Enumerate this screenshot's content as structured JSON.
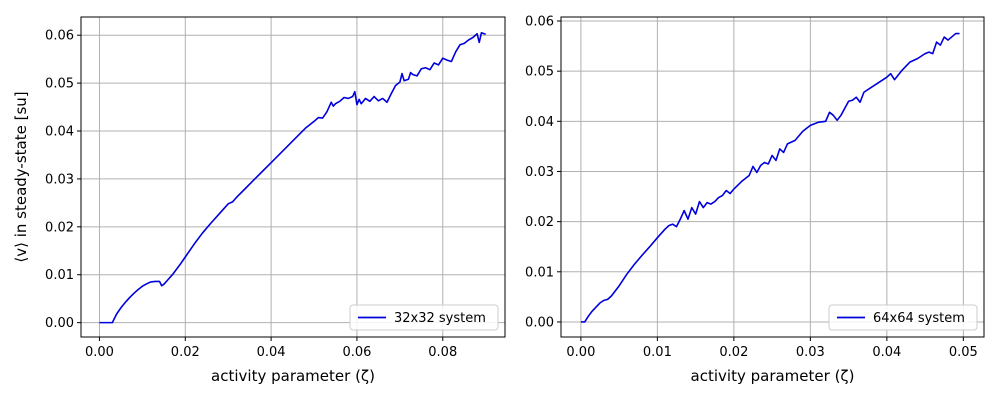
{
  "chart_data": [
    {
      "type": "line",
      "xlabel": "activity parameter (ζ)",
      "ylabel": "⟨v⟩ in steady-state [su]",
      "xlim": [
        -0.0043,
        0.0945
      ],
      "ylim": [
        -0.003,
        0.0638
      ],
      "xticks": [
        0.0,
        0.02,
        0.04,
        0.06,
        0.08
      ],
      "xtick_labels": [
        "0.00",
        "0.02",
        "0.04",
        "0.06",
        "0.08"
      ],
      "yticks": [
        0.0,
        0.01,
        0.02,
        0.03,
        0.04,
        0.05,
        0.06
      ],
      "ytick_labels": [
        "0.00",
        "0.01",
        "0.02",
        "0.03",
        "0.04",
        "0.05",
        "0.06"
      ],
      "grid": true,
      "legend_position": "bottom-right",
      "series": [
        {
          "name": "32x32 system",
          "color": "#0000dd",
          "x": [
            0.0,
            0.001,
            0.002,
            0.003,
            0.004,
            0.005,
            0.006,
            0.007,
            0.008,
            0.009,
            0.01,
            0.011,
            0.012,
            0.013,
            0.014,
            0.0145,
            0.015,
            0.016,
            0.017,
            0.018,
            0.019,
            0.02,
            0.022,
            0.024,
            0.026,
            0.028,
            0.03,
            0.031,
            0.032,
            0.034,
            0.036,
            0.038,
            0.04,
            0.042,
            0.044,
            0.046,
            0.048,
            0.05,
            0.051,
            0.052,
            0.053,
            0.054,
            0.0545,
            0.055,
            0.056,
            0.057,
            0.058,
            0.059,
            0.0595,
            0.06,
            0.0605,
            0.061,
            0.062,
            0.063,
            0.064,
            0.065,
            0.066,
            0.067,
            0.068,
            0.069,
            0.07,
            0.0705,
            0.071,
            0.072,
            0.0725,
            0.073,
            0.074,
            0.075,
            0.076,
            0.077,
            0.078,
            0.079,
            0.08,
            0.081,
            0.082,
            0.083,
            0.084,
            0.085,
            0.086,
            0.087,
            0.088,
            0.0885,
            0.089,
            0.09
          ],
          "y": [
            0.0,
            0.0,
            0.0,
            0.0,
            0.0018,
            0.0031,
            0.0042,
            0.0052,
            0.0061,
            0.0069,
            0.0076,
            0.0081,
            0.0085,
            0.0086,
            0.0086,
            0.0077,
            0.008,
            0.009,
            0.01,
            0.0112,
            0.0124,
            0.0137,
            0.0163,
            0.0187,
            0.0208,
            0.0228,
            0.0248,
            0.0252,
            0.0262,
            0.028,
            0.0298,
            0.0316,
            0.0334,
            0.0352,
            0.037,
            0.0388,
            0.0406,
            0.042,
            0.0428,
            0.0427,
            0.044,
            0.046,
            0.0452,
            0.0457,
            0.0462,
            0.047,
            0.0468,
            0.0472,
            0.0482,
            0.0455,
            0.0466,
            0.0457,
            0.0468,
            0.0462,
            0.0472,
            0.0463,
            0.0468,
            0.046,
            0.0478,
            0.0495,
            0.0502,
            0.052,
            0.0505,
            0.0508,
            0.0522,
            0.0518,
            0.0515,
            0.053,
            0.0532,
            0.0528,
            0.0542,
            0.0538,
            0.0552,
            0.0548,
            0.0545,
            0.0565,
            0.058,
            0.0583,
            0.059,
            0.0595,
            0.0603,
            0.0585,
            0.0605,
            0.0602
          ]
        }
      ]
    },
    {
      "type": "line",
      "xlabel": "activity parameter (ζ)",
      "ylabel": "",
      "xlim": [
        -0.0026,
        0.0527
      ],
      "ylim": [
        -0.003,
        0.0608
      ],
      "xticks": [
        0.0,
        0.01,
        0.02,
        0.03,
        0.04,
        0.05
      ],
      "xtick_labels": [
        "0.00",
        "0.01",
        "0.02",
        "0.03",
        "0.04",
        "0.05"
      ],
      "yticks": [
        0.0,
        0.01,
        0.02,
        0.03,
        0.04,
        0.05,
        0.06
      ],
      "ytick_labels": [
        "0.00",
        "0.01",
        "0.02",
        "0.03",
        "0.04",
        "0.05",
        "0.06"
      ],
      "grid": true,
      "legend_position": "bottom-right",
      "series": [
        {
          "name": "64x64 system",
          "color": "#0000dd",
          "x": [
            0.0,
            0.0005,
            0.001,
            0.0015,
            0.002,
            0.0025,
            0.003,
            0.0035,
            0.004,
            0.0045,
            0.005,
            0.006,
            0.007,
            0.008,
            0.009,
            0.01,
            0.011,
            0.0115,
            0.012,
            0.0125,
            0.013,
            0.0135,
            0.014,
            0.0145,
            0.015,
            0.0155,
            0.016,
            0.0165,
            0.017,
            0.0175,
            0.018,
            0.0185,
            0.019,
            0.0195,
            0.02,
            0.021,
            0.022,
            0.0225,
            0.023,
            0.0235,
            0.024,
            0.0245,
            0.025,
            0.0255,
            0.026,
            0.0265,
            0.027,
            0.028,
            0.029,
            0.03,
            0.031,
            0.032,
            0.0325,
            0.033,
            0.0335,
            0.034,
            0.035,
            0.0355,
            0.036,
            0.0365,
            0.037,
            0.038,
            0.039,
            0.04,
            0.0405,
            0.041,
            0.042,
            0.0425,
            0.043,
            0.044,
            0.045,
            0.0455,
            0.046,
            0.0465,
            0.047,
            0.0475,
            0.048,
            0.049,
            0.0495
          ],
          "y": [
            0.0,
            0.0,
            0.0012,
            0.0022,
            0.003,
            0.0038,
            0.0043,
            0.0045,
            0.0052,
            0.0062,
            0.0072,
            0.0095,
            0.0115,
            0.0133,
            0.015,
            0.0168,
            0.0185,
            0.0192,
            0.0195,
            0.019,
            0.0205,
            0.0222,
            0.0205,
            0.0228,
            0.0215,
            0.024,
            0.0228,
            0.0238,
            0.0235,
            0.024,
            0.0248,
            0.0252,
            0.0262,
            0.0256,
            0.0265,
            0.028,
            0.0292,
            0.031,
            0.0298,
            0.0312,
            0.0318,
            0.0315,
            0.0332,
            0.0322,
            0.0345,
            0.0338,
            0.0355,
            0.0362,
            0.038,
            0.0392,
            0.0398,
            0.04,
            0.0418,
            0.0412,
            0.0402,
            0.0412,
            0.044,
            0.0442,
            0.0448,
            0.0438,
            0.0458,
            0.0468,
            0.0478,
            0.0488,
            0.0495,
            0.0483,
            0.0502,
            0.051,
            0.0518,
            0.0525,
            0.0535,
            0.0538,
            0.0535,
            0.0558,
            0.0552,
            0.0568,
            0.0562,
            0.0575,
            0.0575
          ]
        }
      ]
    }
  ]
}
